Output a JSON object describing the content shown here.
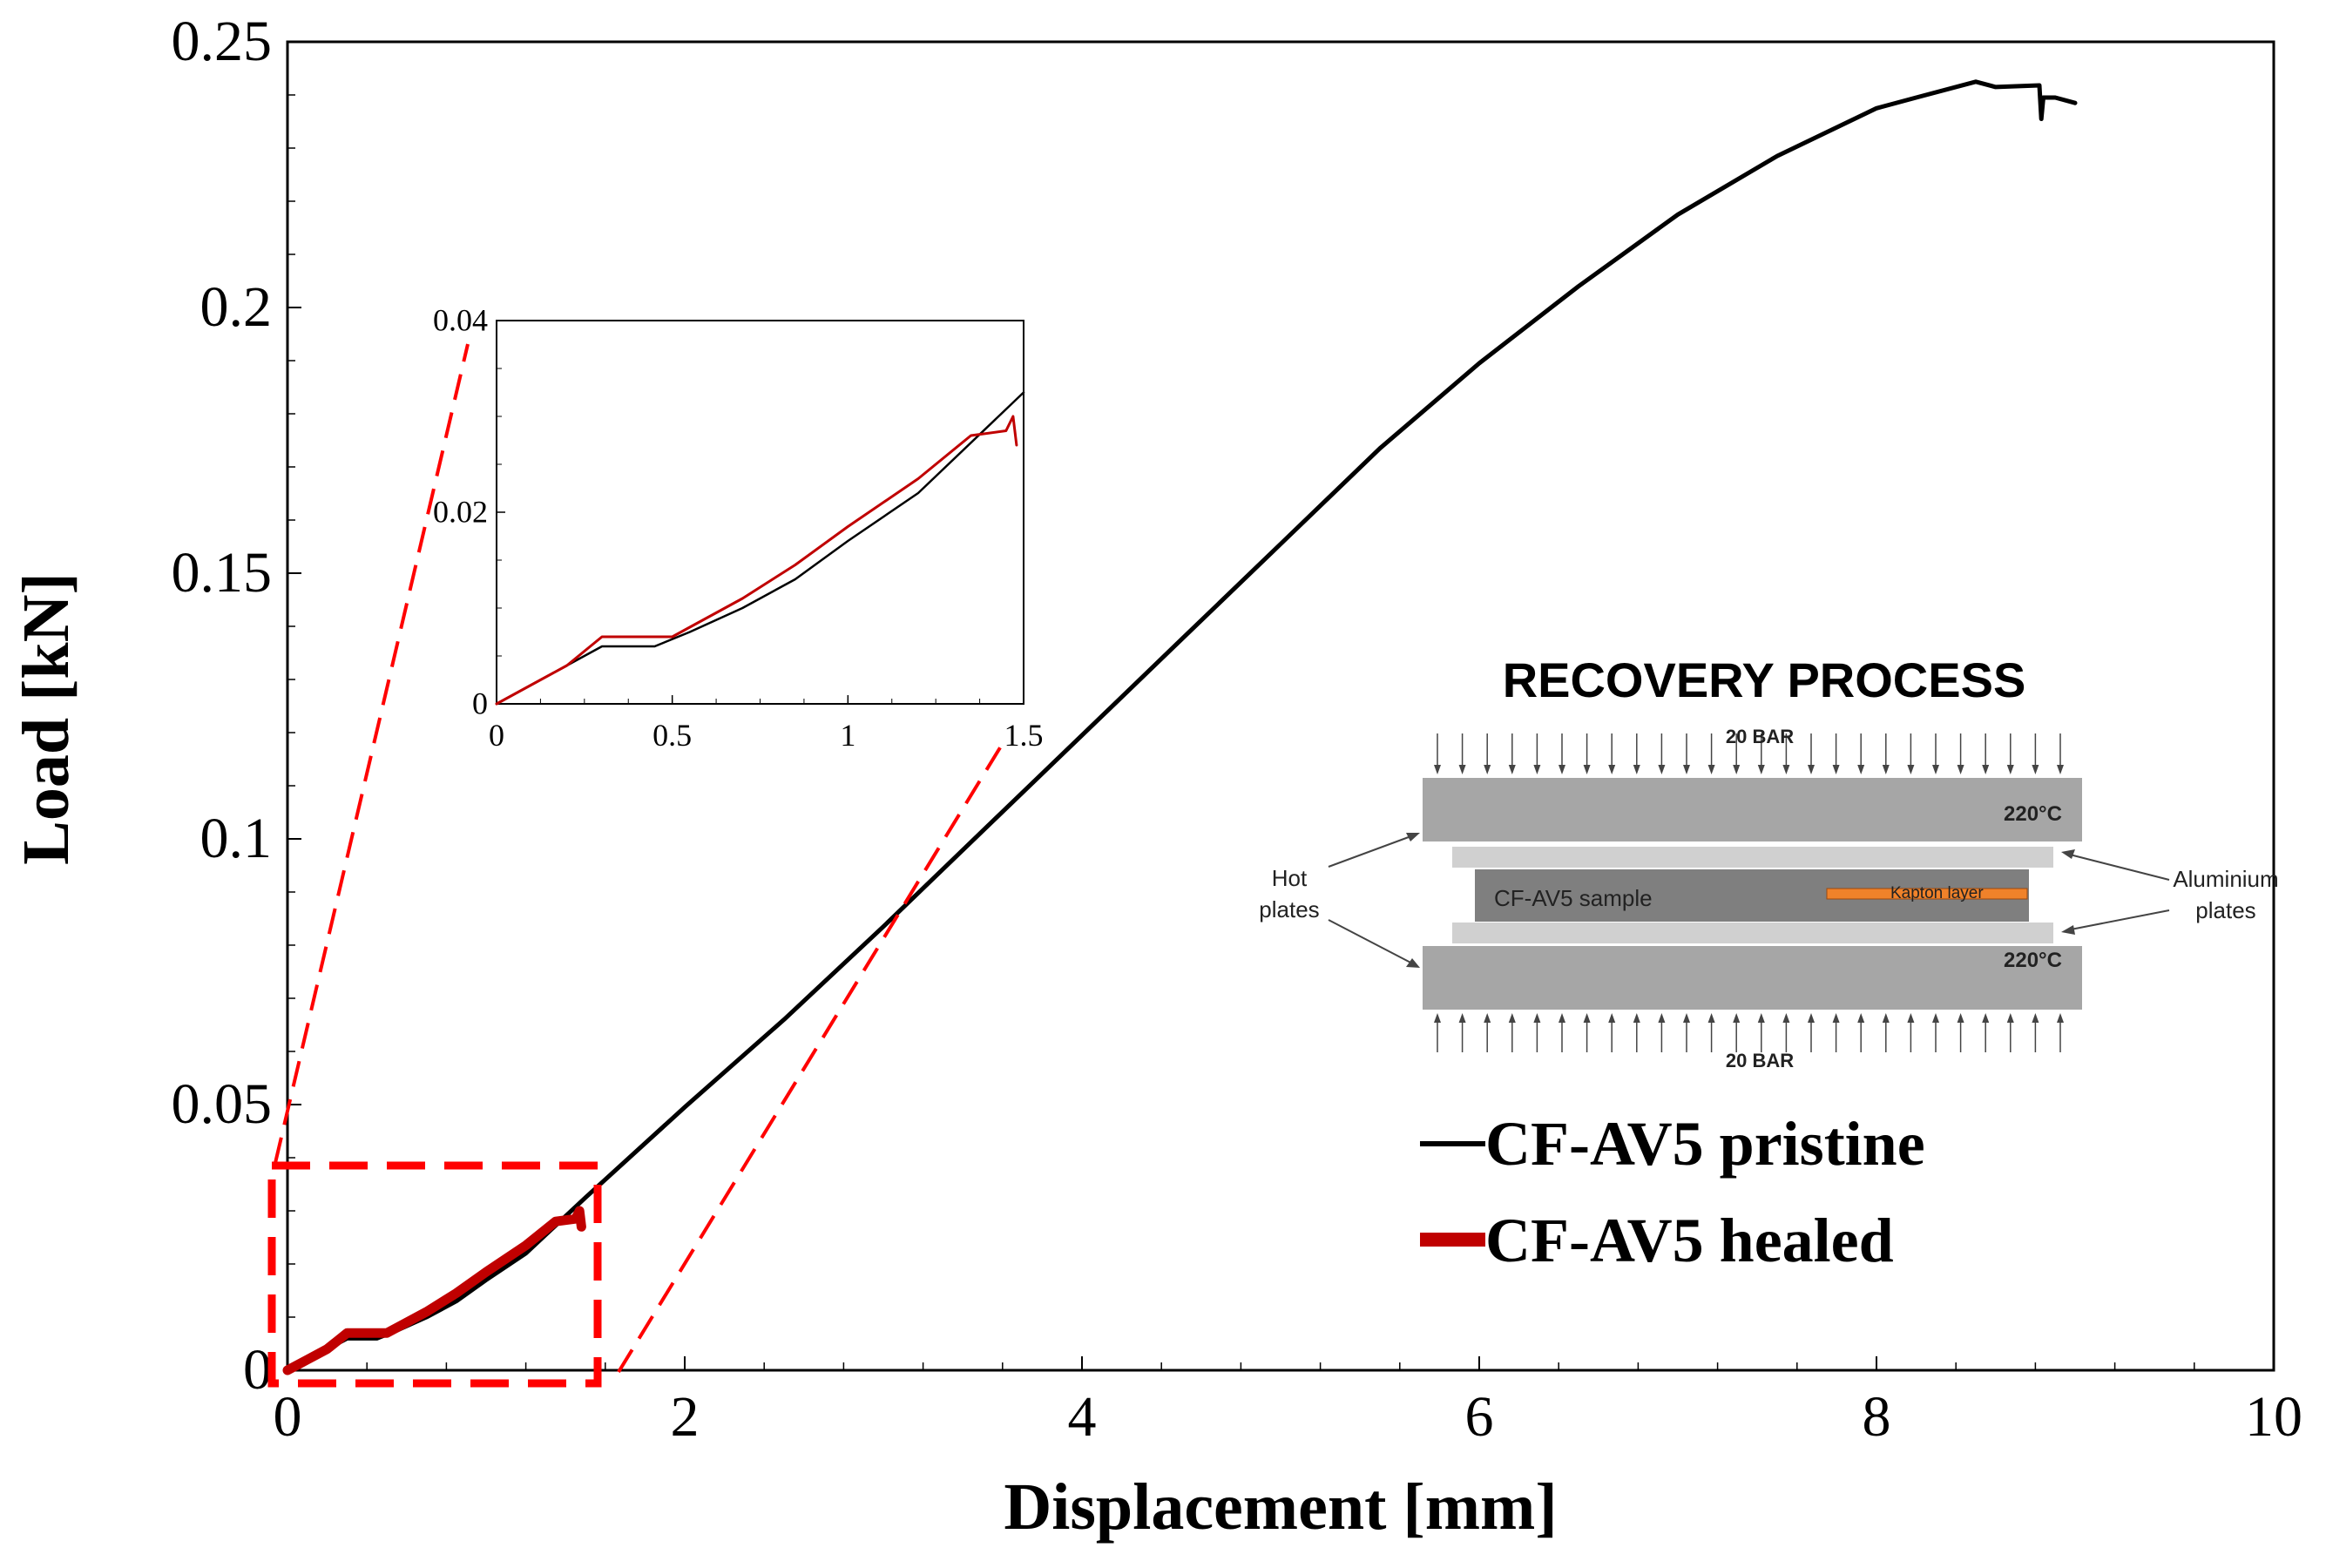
{
  "chart_data": [
    {
      "type": "line",
      "xlabel": "Displacement [mm]",
      "ylabel": "Load [kN]",
      "xlim": [
        0,
        10
      ],
      "ylim": [
        0,
        0.25
      ],
      "xticks": [
        0,
        2,
        4,
        6,
        8,
        10
      ],
      "xtick_labels": [
        "0",
        "2",
        "4",
        "6",
        "8",
        "10"
      ],
      "yticks": [
        0,
        0.05,
        0.1,
        0.15,
        0.2,
        0.25
      ],
      "ytick_labels": [
        "0",
        "0.05",
        "0.1",
        "0.15",
        "0.2",
        "0.25"
      ],
      "legend": {
        "position": "bottom-right",
        "entries": [
          "CF-AV5 pristine",
          "CF-AV5 healed"
        ]
      },
      "series": [
        {
          "name": "CF-AV5 pristine",
          "color": "#000000",
          "x": [
            0,
            0.1,
            0.2,
            0.3,
            0.45,
            0.55,
            0.7,
            0.85,
            1.0,
            1.2,
            1.5,
            2.0,
            2.5,
            3.0,
            3.5,
            4.0,
            4.5,
            5.0,
            5.5,
            6.0,
            6.5,
            7.0,
            7.5,
            8.0,
            8.2,
            8.5,
            8.6,
            8.82,
            8.83,
            8.84,
            8.9,
            9.0
          ],
          "y": [
            0,
            0.002,
            0.004,
            0.006,
            0.006,
            0.0075,
            0.01,
            0.013,
            0.017,
            0.022,
            0.0325,
            0.0495,
            0.066,
            0.0835,
            0.1015,
            0.1195,
            0.1375,
            0.1555,
            0.1735,
            0.1895,
            0.204,
            0.2175,
            0.2285,
            0.2375,
            0.2395,
            0.2425,
            0.2415,
            0.2418,
            0.2355,
            0.2395,
            0.2395,
            0.2385
          ]
        },
        {
          "name": "CF-AV5 healed",
          "color": "#c00000",
          "x": [
            0,
            0.1,
            0.2,
            0.3,
            0.45,
            0.5,
            0.55,
            0.7,
            0.85,
            1.0,
            1.2,
            1.35,
            1.45,
            1.47,
            1.48
          ],
          "y": [
            0,
            0.002,
            0.004,
            0.007,
            0.007,
            0.007,
            0.008,
            0.011,
            0.0145,
            0.0185,
            0.0235,
            0.028,
            0.0285,
            0.03,
            0.027
          ]
        }
      ]
    },
    {
      "type": "line",
      "title": "inset",
      "xlim": [
        0,
        1.5
      ],
      "ylim": [
        0,
        0.04
      ],
      "xticks": [
        0,
        0.5,
        1,
        1.5
      ],
      "xtick_labels": [
        "0",
        "0.5",
        "1",
        "1.5"
      ],
      "yticks": [
        0,
        0.02,
        0.04
      ],
      "ytick_labels": [
        "0",
        "0.02",
        "0.04"
      ],
      "series": [
        {
          "name": "CF-AV5 pristine",
          "color": "#000000",
          "x": [
            0,
            0.1,
            0.2,
            0.3,
            0.45,
            0.55,
            0.7,
            0.85,
            1.0,
            1.2,
            1.5
          ],
          "y": [
            0,
            0.002,
            0.004,
            0.006,
            0.006,
            0.0075,
            0.01,
            0.013,
            0.017,
            0.022,
            0.0325
          ]
        },
        {
          "name": "CF-AV5 healed",
          "color": "#c00000",
          "x": [
            0,
            0.1,
            0.2,
            0.3,
            0.45,
            0.5,
            0.55,
            0.7,
            0.85,
            1.0,
            1.2,
            1.35,
            1.45,
            1.47,
            1.48
          ],
          "y": [
            0,
            0.002,
            0.004,
            0.007,
            0.007,
            0.007,
            0.008,
            0.011,
            0.0145,
            0.0185,
            0.0235,
            0.028,
            0.0285,
            0.03,
            0.027
          ]
        }
      ]
    }
  ],
  "diagram": {
    "title": "RECOVERY PROCESS",
    "pressure_top": "20 BAR",
    "pressure_bottom": "20 BAR",
    "temp_top": "220°C",
    "temp_bottom": "220°C",
    "sample_label": "CF-AV5 sample",
    "kapton_label": "Kapton layer",
    "hot_plates_line1": "Hot",
    "hot_plates_line2": "plates",
    "al_plates_line1": "Aluminium",
    "al_plates_line2": "plates"
  },
  "colors": {
    "pristine": "#000000",
    "healed": "#c00000",
    "zoom_box": "#ff0000",
    "hot_plate": "#a6a6a6",
    "aluminium_plate": "#d0d0d0",
    "sample": "#7f7f7f",
    "kapton": "#f0822a"
  }
}
